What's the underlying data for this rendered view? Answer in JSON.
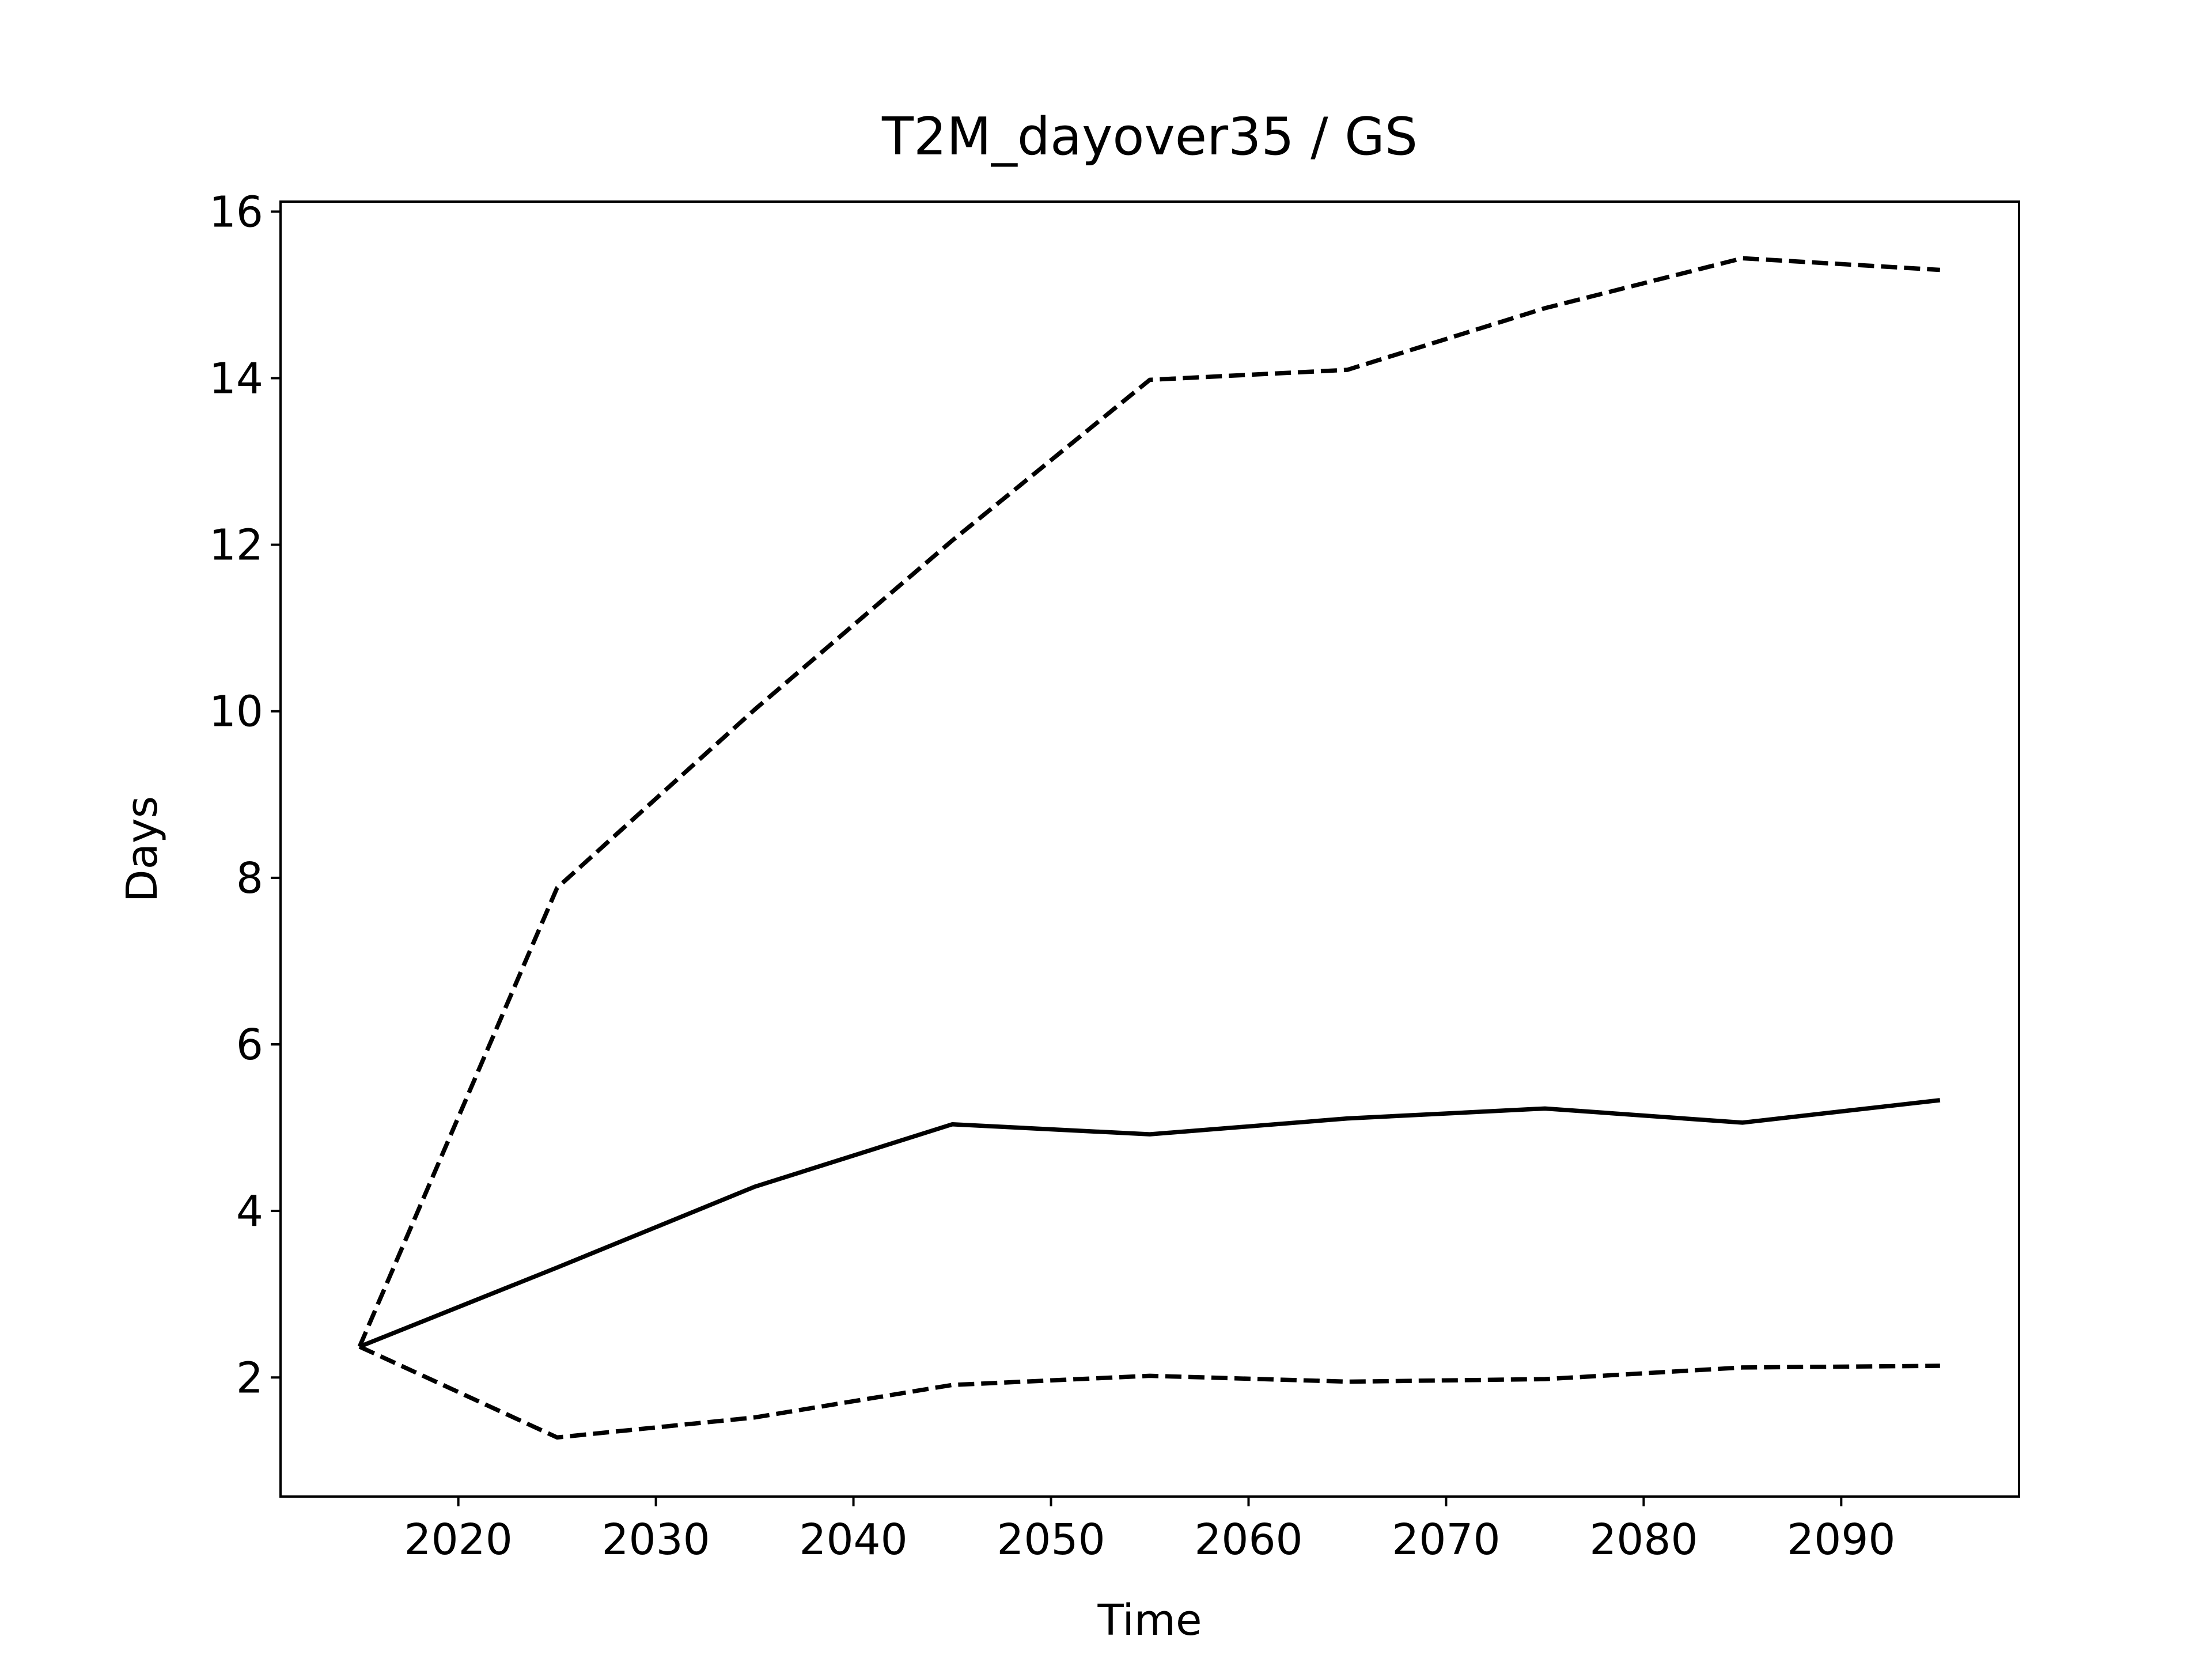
{
  "chart_data": {
    "type": "line",
    "title": "T2M_dayover35 / GS",
    "xlabel": "Time",
    "ylabel": "Days",
    "x": [
      2015,
      2025,
      2035,
      2045,
      2055,
      2065,
      2075,
      2085,
      2095
    ],
    "series": [
      {
        "color": "#000000",
        "linestyle": "solid",
        "values": [
          2.37,
          3.32,
          4.29,
          5.04,
          4.92,
          5.11,
          5.23,
          5.06,
          5.33
        ]
      },
      {
        "color": "#000000",
        "linestyle": "dashed",
        "values": [
          2.37,
          7.88,
          10.02,
          12.05,
          13.98,
          14.1,
          14.84,
          15.44,
          15.3
        ]
      },
      {
        "color": "#000000",
        "linestyle": "dashed",
        "values": [
          2.37,
          1.28,
          1.52,
          1.91,
          2.02,
          1.95,
          1.98,
          2.12,
          2.14
        ]
      }
    ],
    "xlim": [
      2011,
      2099
    ],
    "ylim": [
      0.57,
      16.12
    ],
    "xticks": [
      2020,
      2030,
      2040,
      2050,
      2060,
      2070,
      2080,
      2090
    ],
    "yticks": [
      2,
      4,
      6,
      8,
      10,
      12,
      14,
      16
    ],
    "grid": false
  }
}
